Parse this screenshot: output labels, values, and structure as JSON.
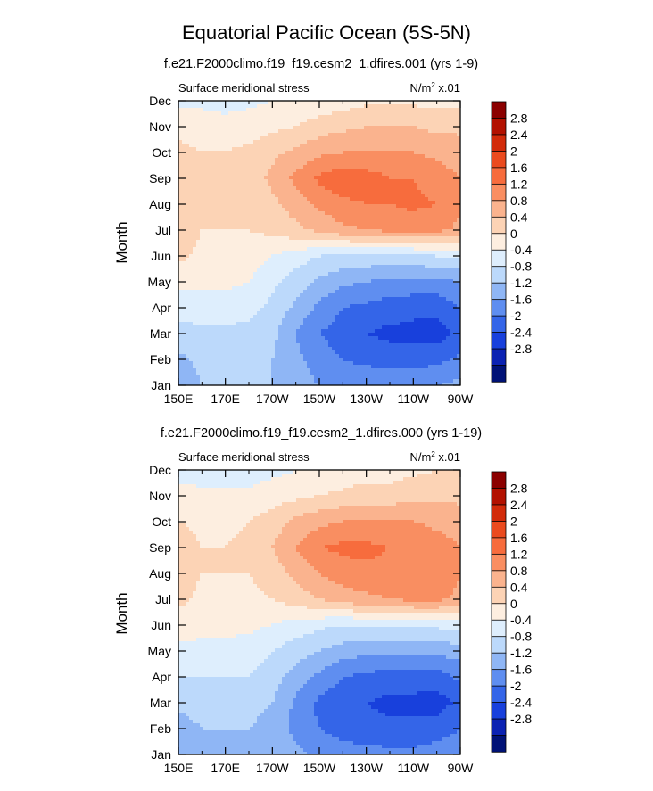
{
  "figure": {
    "title": "Equatorial Pacific Ocean (5S-5N)"
  },
  "colorbar": {
    "ticks": [
      "2.8",
      "2.4",
      "2",
      "1.6",
      "1.2",
      "0.8",
      "0.4",
      "0",
      "-0.4",
      "-0.8",
      "-1.2",
      "-1.6",
      "-2",
      "-2.4",
      "-2.8"
    ],
    "colors": [
      "#8b0000",
      "#b21100",
      "#d22b0a",
      "#ea4a1e",
      "#f76c3d",
      "#f98e61",
      "#fab38e",
      "#fcd3b5",
      "#fdeee0",
      "#deeefd",
      "#bcd9fb",
      "#8fb6f5",
      "#5f8ef0",
      "#3465e8",
      "#1840dc",
      "#0b22b2",
      "#001277"
    ]
  },
  "chart_data": [
    {
      "type": "heatmap",
      "subtitle": "f.e21.F2000climo.f19_f19.cesm2_1.dfires.001 (yrs 1-9)",
      "left_label": "Surface meridional stress",
      "units_prefix": "N/m",
      "units_sup": "2",
      "units_suffix": " x.01",
      "ylabel": "Month",
      "xlabel": "",
      "x_ticks": [
        "150E",
        "170E",
        "170W",
        "150W",
        "130W",
        "110W",
        "90W"
      ],
      "y_ticks": [
        "Jan",
        "Feb",
        "Mar",
        "Apr",
        "May",
        "Jun",
        "Jul",
        "Aug",
        "Sep",
        "Oct",
        "Nov",
        "Dec"
      ],
      "x_lon": [
        150,
        160,
        170,
        180,
        190,
        200,
        210,
        220,
        230,
        240,
        250,
        260,
        270
      ],
      "months": [
        "Jan",
        "Feb",
        "Mar",
        "Apr",
        "May",
        "Jun",
        "Jul",
        "Aug",
        "Sep",
        "Oct",
        "Nov",
        "Dec"
      ],
      "values": [
        [
          -1.0,
          -0.8,
          -0.7,
          -0.7,
          -0.8,
          -1.0,
          -1.2,
          -1.3,
          -1.3,
          -1.3,
          -1.3,
          -1.2,
          -1.1
        ],
        [
          -0.9,
          -0.7,
          -0.6,
          -0.6,
          -0.8,
          -1.1,
          -1.4,
          -1.6,
          -1.7,
          -1.8,
          -1.8,
          -1.7,
          -1.5
        ],
        [
          -0.5,
          -0.5,
          -0.5,
          -0.5,
          -0.7,
          -1.2,
          -1.6,
          -1.8,
          -2.0,
          -2.1,
          -2.1,
          -2.2,
          -1.9
        ],
        [
          -0.3,
          -0.2,
          -0.2,
          -0.3,
          -0.5,
          -0.9,
          -1.3,
          -1.6,
          -1.7,
          -1.8,
          -1.9,
          -1.9,
          -1.6
        ],
        [
          0.1,
          0.1,
          0.1,
          0.0,
          -0.3,
          -0.6,
          -0.9,
          -1.1,
          -1.2,
          -1.3,
          -1.3,
          -1.3,
          -1.2
        ],
        [
          0.5,
          0.3,
          0.3,
          0.2,
          0.0,
          -0.2,
          -0.4,
          -0.5,
          -0.5,
          -0.5,
          -0.5,
          -0.4,
          -0.3
        ],
        [
          0.6,
          0.4,
          0.4,
          0.4,
          0.5,
          0.7,
          0.9,
          1.1,
          1.2,
          1.3,
          1.3,
          1.3,
          1.1
        ],
        [
          0.7,
          0.5,
          0.4,
          0.4,
          0.7,
          1.0,
          1.3,
          1.5,
          1.6,
          1.6,
          1.7,
          1.6,
          1.3
        ],
        [
          0.7,
          0.5,
          0.5,
          0.6,
          0.9,
          1.3,
          1.7,
          1.9,
          1.8,
          1.6,
          1.6,
          1.4,
          1.2
        ],
        [
          0.5,
          0.4,
          0.4,
          0.5,
          0.7,
          0.9,
          1.1,
          1.2,
          1.2,
          1.2,
          1.2,
          1.1,
          1.0
        ],
        [
          0.3,
          0.2,
          0.2,
          0.2,
          0.3,
          0.4,
          0.6,
          0.7,
          0.8,
          0.8,
          0.8,
          0.7,
          0.7
        ],
        [
          -0.1,
          -0.1,
          -0.2,
          -0.1,
          0.0,
          0.1,
          0.1,
          0.2,
          0.3,
          0.3,
          0.3,
          0.3,
          0.3
        ]
      ],
      "levels": [
        -2.8,
        -2.4,
        -2.0,
        -1.6,
        -1.2,
        -0.8,
        -0.4,
        0.0,
        0.4,
        0.8,
        1.2,
        1.6,
        2.0,
        2.4,
        2.8
      ]
    },
    {
      "type": "heatmap",
      "subtitle": "f.e21.F2000climo.f19_f19.cesm2_1.dfires.000 (yrs 1-19)",
      "left_label": "Surface meridional stress",
      "units_prefix": "N/m",
      "units_sup": "2",
      "units_suffix": " x.01",
      "ylabel": "Month",
      "xlabel": "",
      "x_ticks": [
        "150E",
        "170E",
        "170W",
        "150W",
        "130W",
        "110W",
        "90W"
      ],
      "y_ticks": [
        "Jan",
        "Feb",
        "Mar",
        "Apr",
        "May",
        "Jun",
        "Jul",
        "Aug",
        "Sep",
        "Oct",
        "Nov",
        "Dec"
      ],
      "x_lon": [
        150,
        160,
        170,
        180,
        190,
        200,
        210,
        220,
        230,
        240,
        250,
        260,
        270
      ],
      "months": [
        "Jan",
        "Feb",
        "Mar",
        "Apr",
        "May",
        "Jun",
        "Jul",
        "Aug",
        "Sep",
        "Oct",
        "Nov",
        "Dec"
      ],
      "values": [
        [
          -1.1,
          -1.0,
          -0.9,
          -0.9,
          -1.0,
          -1.1,
          -1.3,
          -1.4,
          -1.4,
          -1.5,
          -1.5,
          -1.4,
          -1.3
        ],
        [
          -1.0,
          -0.8,
          -0.8,
          -0.8,
          -1.0,
          -1.3,
          -1.6,
          -1.8,
          -1.9,
          -1.9,
          -1.9,
          -1.8,
          -1.6
        ],
        [
          -0.7,
          -0.6,
          -0.6,
          -0.6,
          -0.8,
          -1.3,
          -1.7,
          -1.9,
          -2.0,
          -2.1,
          -2.1,
          -2.2,
          -1.9
        ],
        [
          -0.4,
          -0.4,
          -0.4,
          -0.4,
          -0.6,
          -1.0,
          -1.3,
          -1.6,
          -1.7,
          -1.8,
          -1.8,
          -1.8,
          -1.5
        ],
        [
          -0.1,
          -0.1,
          -0.1,
          -0.2,
          -0.4,
          -0.6,
          -0.8,
          -1.0,
          -1.1,
          -1.1,
          -1.1,
          -1.1,
          -1.0
        ],
        [
          0.2,
          0.1,
          0.1,
          0.1,
          0.0,
          -0.2,
          -0.3,
          -0.4,
          -0.4,
          -0.4,
          -0.3,
          -0.3,
          -0.2
        ],
        [
          0.5,
          0.3,
          0.3,
          0.3,
          0.4,
          0.6,
          0.8,
          1.0,
          1.1,
          1.2,
          1.3,
          1.3,
          1.1
        ],
        [
          0.6,
          0.4,
          0.4,
          0.4,
          0.6,
          0.9,
          1.2,
          1.4,
          1.5,
          1.5,
          1.5,
          1.5,
          1.2
        ],
        [
          0.6,
          0.4,
          0.4,
          0.5,
          0.8,
          1.2,
          1.6,
          1.7,
          1.7,
          1.6,
          1.5,
          1.4,
          1.2
        ],
        [
          0.4,
          0.3,
          0.3,
          0.4,
          0.6,
          0.9,
          1.1,
          1.2,
          1.2,
          1.2,
          1.2,
          1.1,
          1.0
        ],
        [
          0.2,
          0.1,
          0.1,
          0.1,
          0.2,
          0.3,
          0.4,
          0.5,
          0.6,
          0.6,
          0.7,
          0.7,
          0.7
        ],
        [
          -0.2,
          -0.2,
          -0.2,
          -0.2,
          -0.1,
          0.0,
          0.1,
          0.1,
          0.2,
          0.2,
          0.3,
          0.4,
          0.5
        ]
      ],
      "levels": [
        -2.8,
        -2.4,
        -2.0,
        -1.6,
        -1.2,
        -0.8,
        -0.4,
        0.0,
        0.4,
        0.8,
        1.2,
        1.6,
        2.0,
        2.4,
        2.8
      ]
    }
  ]
}
